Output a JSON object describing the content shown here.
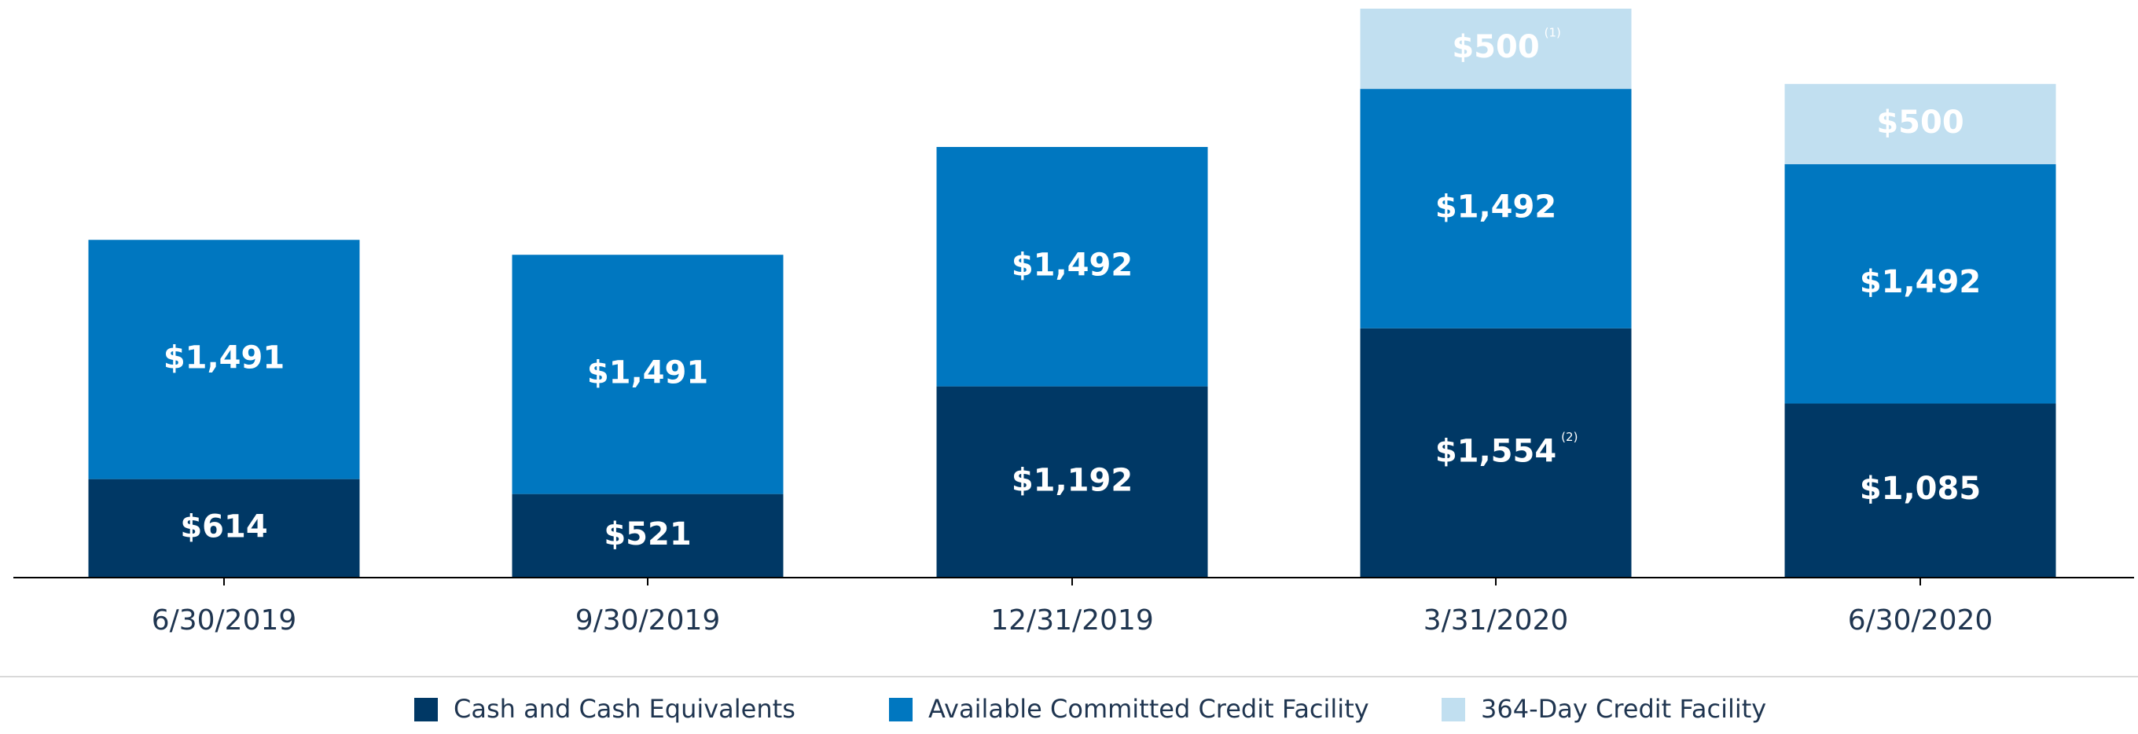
{
  "chart_data": {
    "type": "stacked_bar",
    "categories": [
      "6/30/2019",
      "9/30/2019",
      "12/31/2019",
      "3/31/2020",
      "6/30/2020"
    ],
    "series": [
      {
        "name": "Cash and Cash Equivalents",
        "color": "#003865",
        "values": [
          614,
          521,
          1192,
          1554,
          1085
        ],
        "value_labels": [
          "$614",
          "$521",
          "$1,192",
          "$1,554",
          "$1,085"
        ],
        "notes": [
          null,
          null,
          null,
          "(2)",
          null
        ]
      },
      {
        "name": "Available Committed Credit Facility",
        "color": "#0077c0",
        "values": [
          1491,
          1491,
          1492,
          1492,
          1492
        ],
        "value_labels": [
          "$1,491",
          "$1,491",
          "$1,492",
          "$1,492",
          "$1,492"
        ],
        "notes": [
          null,
          null,
          null,
          null,
          null
        ]
      },
      {
        "name": "364-Day Credit Facility",
        "color": "#c1dff0",
        "values": [
          null,
          null,
          null,
          500,
          500
        ],
        "value_labels": [
          null,
          null,
          null,
          "$500",
          "$500"
        ],
        "notes": [
          null,
          null,
          null,
          "(1)",
          null
        ]
      }
    ],
    "ylim": [
      0,
      3600
    ],
    "legend": "bottom"
  }
}
